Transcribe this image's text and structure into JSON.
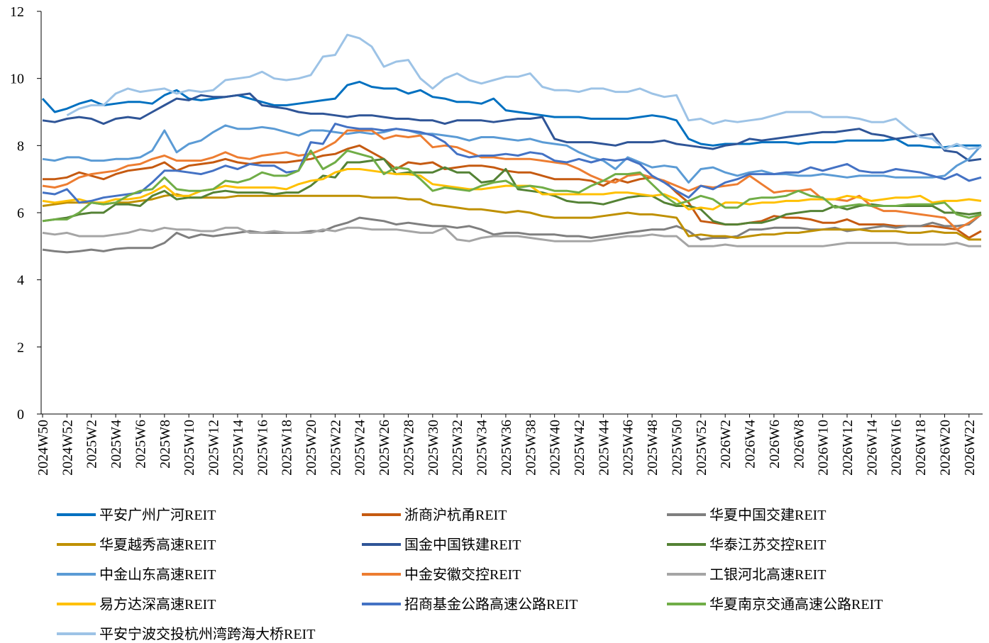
{
  "chart_data": {
    "type": "line",
    "categories": [
      "2024W50",
      null,
      "2024W52",
      null,
      "2025W2",
      null,
      "2025W4",
      null,
      "2025W6",
      null,
      "2025W8",
      null,
      "2025W10",
      null,
      "2025W12",
      null,
      "2025W14",
      null,
      "2025W16",
      null,
      "2025W18",
      null,
      "2025W20",
      null,
      "2025W22",
      null,
      "2025W24",
      null,
      "2025W26",
      null,
      "2025W28",
      null,
      "2025W30",
      null,
      "2025W32",
      null,
      "2025W34",
      null,
      "2025W36",
      null,
      "2025W38",
      null,
      "2025W40",
      null,
      "2025W42",
      null,
      "2025W44",
      null,
      "2025W46",
      null,
      "2025W48",
      null,
      "2025W50",
      null,
      "2025W52",
      null,
      "2026W2",
      null,
      "2026W4",
      null,
      "2026W6",
      null,
      "2026W8",
      null,
      "2026W10",
      null,
      "2026W12",
      null,
      "2026W14",
      null,
      "2026W16",
      null,
      "2026W18",
      null,
      "2026W20",
      null,
      "2026W22",
      null
    ],
    "ylim": [
      0,
      12
    ],
    "yticks": [
      0,
      2,
      4,
      6,
      8,
      10,
      12
    ],
    "grid": false,
    "legend": "bottom",
    "series": [
      {
        "name": "平安广州广河REIT",
        "color": "#0070c0",
        "values": [
          9.4,
          9.0,
          9.1,
          9.25,
          9.35,
          9.2,
          9.25,
          9.3,
          9.3,
          9.25,
          9.5,
          9.65,
          9.4,
          9.35,
          9.4,
          9.45,
          9.5,
          9.4,
          9.3,
          9.2,
          9.2,
          9.25,
          9.3,
          9.35,
          9.4,
          9.8,
          9.9,
          9.75,
          9.7,
          9.7,
          9.55,
          9.65,
          9.45,
          9.4,
          9.3,
          9.3,
          9.25,
          9.4,
          9.05,
          9.0,
          8.95,
          8.9,
          8.85,
          8.85,
          8.85,
          8.8,
          8.8,
          8.8,
          8.8,
          8.85,
          8.9,
          8.85,
          8.75,
          8.2,
          8.05,
          8.0,
          8.05,
          8.05,
          8.05,
          8.1,
          8.1,
          8.1,
          8.05,
          8.1,
          8.1,
          8.1,
          8.15,
          8.15,
          8.15,
          8.15,
          8.2,
          8.0,
          8.0,
          7.95,
          7.95,
          8.0,
          8.0,
          8.0
        ]
      },
      {
        "name": "浙商沪杭甬REIT",
        "color": "#c55a11",
        "values": [
          7.0,
          7.0,
          7.05,
          7.2,
          7.1,
          7.0,
          7.15,
          7.25,
          7.3,
          7.35,
          7.5,
          7.25,
          7.4,
          7.45,
          7.5,
          7.6,
          7.5,
          7.45,
          7.5,
          7.5,
          7.5,
          7.55,
          7.6,
          7.7,
          7.75,
          7.9,
          8.0,
          7.8,
          7.6,
          7.3,
          7.5,
          7.45,
          7.5,
          7.3,
          7.35,
          7.4,
          7.4,
          7.35,
          7.25,
          7.2,
          7.2,
          7.1,
          7.0,
          7.0,
          7.0,
          6.95,
          6.8,
          7.0,
          6.9,
          7.0,
          7.05,
          6.95,
          6.6,
          6.3,
          5.75,
          5.7,
          5.65,
          5.65,
          5.7,
          5.75,
          5.9,
          5.85,
          5.85,
          5.8,
          5.7,
          5.7,
          5.8,
          5.65,
          5.65,
          5.65,
          5.6,
          5.6,
          5.6,
          5.6,
          5.55,
          5.5,
          5.25,
          5.45
        ]
      },
      {
        "name": "华夏中国交建REIT",
        "color": "#7f7f7f",
        "values": [
          4.9,
          4.85,
          4.82,
          4.85,
          4.9,
          4.85,
          4.92,
          4.95,
          4.95,
          4.95,
          5.1,
          5.4,
          5.25,
          5.35,
          5.3,
          5.35,
          5.4,
          5.45,
          5.4,
          5.4,
          5.4,
          5.4,
          5.45,
          5.45,
          5.6,
          5.7,
          5.85,
          5.8,
          5.75,
          5.65,
          5.7,
          5.65,
          5.6,
          5.6,
          5.55,
          5.6,
          5.5,
          5.35,
          5.4,
          5.4,
          5.35,
          5.35,
          5.35,
          5.3,
          5.3,
          5.25,
          5.3,
          5.35,
          5.4,
          5.45,
          5.5,
          5.5,
          5.6,
          5.45,
          5.2,
          5.25,
          5.25,
          5.3,
          5.5,
          5.5,
          5.55,
          5.55,
          5.55,
          5.5,
          5.5,
          5.55,
          5.45,
          5.5,
          5.55,
          5.6,
          5.55,
          5.6,
          5.6,
          5.7,
          5.6,
          5.6,
          5.65,
          5.95
        ]
      },
      {
        "name": "华夏越秀高速REIT",
        "color": "#bf9000",
        "values": [
          6.2,
          6.25,
          6.3,
          6.3,
          6.3,
          6.25,
          6.3,
          6.3,
          6.35,
          6.4,
          6.5,
          6.55,
          6.45,
          6.45,
          6.45,
          6.45,
          6.5,
          6.5,
          6.5,
          6.5,
          6.5,
          6.5,
          6.5,
          6.5,
          6.5,
          6.5,
          6.5,
          6.45,
          6.45,
          6.45,
          6.4,
          6.4,
          6.25,
          6.2,
          6.15,
          6.1,
          6.1,
          6.05,
          6.0,
          6.05,
          6.0,
          5.9,
          5.85,
          5.85,
          5.85,
          5.85,
          5.9,
          5.95,
          6.0,
          5.95,
          5.95,
          5.9,
          5.85,
          5.3,
          5.35,
          5.3,
          5.3,
          5.25,
          5.3,
          5.35,
          5.35,
          5.4,
          5.4,
          5.45,
          5.5,
          5.5,
          5.5,
          5.5,
          5.45,
          5.45,
          5.45,
          5.4,
          5.4,
          5.45,
          5.4,
          5.4,
          5.2,
          5.2
        ]
      },
      {
        "name": "国金中国铁建REIT",
        "color": "#2f5597",
        "values": [
          8.75,
          8.7,
          8.8,
          8.85,
          8.8,
          8.65,
          8.8,
          8.85,
          8.8,
          9.0,
          9.2,
          9.4,
          9.35,
          9.5,
          9.45,
          9.45,
          9.5,
          9.55,
          9.2,
          9.15,
          9.1,
          9.0,
          8.95,
          8.95,
          8.9,
          8.85,
          8.9,
          8.9,
          8.85,
          8.8,
          8.8,
          8.75,
          8.75,
          8.65,
          8.75,
          8.75,
          8.75,
          8.7,
          8.75,
          8.8,
          8.8,
          8.85,
          8.2,
          8.1,
          8.1,
          8.1,
          8.05,
          8.0,
          8.1,
          8.1,
          8.1,
          8.15,
          8.05,
          8.0,
          7.95,
          7.9,
          8.0,
          8.05,
          8.2,
          8.15,
          8.2,
          8.25,
          8.3,
          8.35,
          8.4,
          8.4,
          8.45,
          8.5,
          8.35,
          8.3,
          8.2,
          8.25,
          8.3,
          8.35,
          7.85,
          7.8,
          7.55,
          7.6
        ]
      },
      {
        "name": "华泰江苏交控REIT",
        "color": "#548235",
        "values": [
          5.75,
          5.8,
          5.85,
          5.95,
          6.0,
          6.0,
          6.25,
          6.25,
          6.2,
          6.5,
          6.65,
          6.4,
          6.45,
          6.45,
          6.6,
          6.65,
          6.6,
          6.6,
          6.6,
          6.55,
          6.6,
          6.6,
          6.8,
          7.1,
          7.05,
          7.5,
          7.5,
          7.55,
          7.6,
          7.15,
          7.2,
          7.2,
          7.2,
          7.35,
          7.2,
          7.2,
          6.9,
          6.95,
          7.3,
          6.7,
          6.65,
          6.6,
          6.5,
          6.35,
          6.3,
          6.3,
          6.25,
          6.35,
          6.45,
          6.5,
          6.5,
          6.3,
          6.2,
          6.2,
          6.1,
          5.75,
          5.65,
          5.65,
          5.7,
          5.7,
          5.8,
          5.95,
          6.0,
          6.05,
          6.05,
          6.2,
          6.1,
          6.2,
          6.25,
          6.2,
          6.2,
          6.2,
          6.2,
          6.2,
          6.0,
          6.0,
          5.95,
          6.0
        ]
      },
      {
        "name": "中金山东高速REIT",
        "color": "#5b9bd5",
        "values": [
          7.6,
          7.55,
          7.65,
          7.65,
          7.55,
          7.55,
          7.6,
          7.6,
          7.65,
          7.85,
          8.45,
          7.8,
          8.05,
          8.15,
          8.4,
          8.6,
          8.5,
          8.5,
          8.55,
          8.5,
          8.4,
          8.3,
          8.45,
          8.45,
          8.4,
          8.35,
          8.4,
          8.35,
          8.4,
          8.5,
          8.45,
          8.35,
          8.35,
          8.3,
          8.25,
          8.15,
          8.25,
          8.25,
          8.2,
          8.15,
          8.2,
          8.1,
          8.05,
          8.0,
          7.8,
          7.65,
          7.55,
          7.3,
          7.65,
          7.5,
          7.35,
          7.4,
          7.35,
          6.9,
          7.3,
          7.35,
          7.2,
          7.1,
          7.2,
          7.25,
          7.15,
          7.15,
          7.1,
          7.1,
          7.15,
          7.1,
          7.05,
          7.1,
          7.1,
          7.1,
          7.05,
          7.05,
          7.05,
          7.05,
          7.1,
          7.4,
          7.6,
          8.0
        ]
      },
      {
        "name": "中金安徽交控REIT",
        "color": "#ed7d31",
        "values": [
          6.8,
          6.75,
          6.85,
          7.05,
          7.15,
          7.2,
          7.25,
          7.4,
          7.45,
          7.6,
          7.7,
          7.55,
          7.55,
          7.55,
          7.65,
          7.8,
          7.65,
          7.6,
          7.7,
          7.75,
          7.8,
          7.7,
          7.75,
          7.9,
          8.1,
          8.45,
          8.45,
          8.45,
          8.2,
          8.3,
          8.25,
          8.3,
          7.95,
          8.0,
          7.95,
          7.8,
          7.65,
          7.65,
          7.6,
          7.6,
          7.6,
          7.55,
          7.5,
          7.45,
          7.3,
          7.1,
          6.95,
          6.9,
          7.1,
          7.15,
          7.05,
          6.95,
          6.8,
          6.65,
          6.8,
          6.75,
          6.8,
          6.85,
          7.1,
          6.85,
          6.6,
          6.65,
          6.65,
          6.7,
          6.4,
          6.4,
          6.35,
          6.5,
          6.2,
          6.05,
          6.05,
          6.0,
          5.95,
          5.9,
          5.85,
          5.5,
          5.7,
          5.95
        ]
      },
      {
        "name": "工银河北高速REIT",
        "color": "#a5a5a5",
        "values": [
          5.4,
          5.35,
          5.4,
          5.3,
          5.3,
          5.3,
          5.35,
          5.4,
          5.5,
          5.45,
          5.55,
          5.5,
          5.5,
          5.45,
          5.45,
          5.55,
          5.55,
          5.4,
          5.4,
          5.45,
          5.4,
          5.4,
          5.4,
          5.5,
          5.45,
          5.55,
          5.55,
          5.5,
          5.5,
          5.5,
          5.45,
          5.4,
          5.4,
          5.55,
          5.2,
          5.15,
          5.25,
          5.3,
          5.3,
          5.3,
          5.25,
          5.2,
          5.15,
          5.15,
          5.15,
          5.15,
          5.2,
          5.25,
          5.3,
          5.3,
          5.35,
          5.3,
          5.3,
          5.0,
          5.0,
          5.0,
          5.05,
          5.0,
          5.0,
          5.0,
          5.0,
          5.0,
          5.0,
          5.0,
          5.0,
          5.05,
          5.1,
          5.1,
          5.1,
          5.1,
          5.1,
          5.05,
          5.05,
          5.05,
          5.05,
          5.1,
          5.0,
          5.0
        ]
      },
      {
        "name": "易方达深高速REIT",
        "color": "#ffc000",
        "values": [
          6.35,
          6.3,
          6.35,
          6.4,
          6.3,
          6.3,
          6.4,
          6.4,
          6.45,
          6.6,
          6.8,
          6.5,
          6.5,
          6.65,
          6.7,
          6.8,
          6.75,
          6.75,
          6.75,
          6.75,
          6.7,
          6.85,
          6.95,
          7.0,
          7.2,
          7.3,
          7.3,
          7.25,
          7.2,
          7.15,
          7.15,
          7.1,
          6.85,
          6.8,
          6.75,
          6.7,
          6.7,
          6.75,
          6.8,
          6.8,
          6.8,
          6.55,
          6.55,
          6.55,
          6.55,
          6.55,
          6.55,
          6.6,
          6.6,
          6.55,
          6.5,
          6.55,
          6.4,
          6.1,
          6.15,
          6.1,
          6.3,
          6.3,
          6.25,
          6.3,
          6.3,
          6.35,
          6.35,
          6.4,
          6.4,
          6.4,
          6.5,
          6.45,
          6.35,
          6.4,
          6.45,
          6.45,
          6.5,
          6.3,
          6.35,
          6.35,
          6.4,
          6.35
        ]
      },
      {
        "name": "招商基金公路高速公路REIT",
        "color": "#4472c4",
        "values": [
          6.6,
          6.55,
          6.7,
          6.3,
          6.35,
          6.45,
          6.5,
          6.55,
          6.6,
          6.9,
          7.25,
          7.25,
          7.2,
          7.15,
          7.25,
          7.4,
          7.3,
          7.45,
          7.4,
          7.4,
          7.2,
          7.25,
          8.1,
          8.05,
          8.65,
          8.55,
          8.5,
          8.5,
          8.45,
          8.5,
          8.45,
          8.4,
          8.3,
          8.1,
          7.75,
          7.65,
          7.7,
          7.7,
          7.75,
          7.7,
          7.8,
          7.75,
          7.55,
          7.5,
          7.6,
          7.5,
          7.6,
          7.55,
          7.6,
          7.45,
          7.1,
          6.9,
          6.65,
          6.45,
          6.8,
          6.7,
          6.9,
          7.0,
          7.15,
          7.15,
          7.15,
          7.2,
          7.2,
          7.35,
          7.25,
          7.35,
          7.45,
          7.25,
          7.2,
          7.2,
          7.3,
          7.25,
          7.2,
          7.1,
          7.0,
          7.15,
          6.95,
          7.05
        ]
      },
      {
        "name": "华夏南京交通高速公路REIT",
        "color": "#70ad47",
        "values": [
          5.75,
          5.8,
          5.8,
          6.0,
          6.3,
          6.25,
          6.3,
          6.5,
          6.65,
          6.7,
          7.05,
          6.7,
          6.65,
          6.65,
          6.7,
          6.95,
          6.9,
          7.0,
          7.2,
          7.1,
          7.1,
          7.25,
          7.85,
          7.3,
          7.5,
          7.85,
          7.75,
          7.65,
          7.15,
          7.35,
          7.3,
          7.0,
          6.65,
          6.75,
          6.7,
          6.65,
          6.8,
          6.9,
          6.95,
          6.75,
          6.8,
          6.75,
          6.65,
          6.65,
          6.6,
          6.8,
          6.95,
          7.15,
          7.15,
          7.2,
          6.85,
          6.5,
          6.25,
          6.35,
          6.5,
          6.4,
          6.15,
          6.15,
          6.4,
          6.45,
          6.45,
          6.5,
          6.65,
          6.5,
          6.45,
          6.15,
          6.2,
          6.25,
          6.2,
          6.2,
          6.2,
          6.25,
          6.25,
          6.25,
          6.3,
          5.95,
          5.85,
          5.95
        ]
      },
      {
        "name": "平安宁波交投杭州湾跨海大桥REIT",
        "color": "#9dc3e6",
        "values": [
          null,
          null,
          8.9,
          9.1,
          9.2,
          9.2,
          9.55,
          9.7,
          9.6,
          9.65,
          9.7,
          9.55,
          9.65,
          9.6,
          9.65,
          9.95,
          10.0,
          10.05,
          10.2,
          10.0,
          9.95,
          10.0,
          10.1,
          10.65,
          10.7,
          11.3,
          11.2,
          10.95,
          10.35,
          10.5,
          10.55,
          10.0,
          9.7,
          10.0,
          10.15,
          9.95,
          9.85,
          9.95,
          10.05,
          10.05,
          10.15,
          9.75,
          9.65,
          9.65,
          9.6,
          9.7,
          9.7,
          9.6,
          9.6,
          9.7,
          9.55,
          9.45,
          9.5,
          8.75,
          8.8,
          8.65,
          8.75,
          8.7,
          8.75,
          8.8,
          8.9,
          9.0,
          9.0,
          9.0,
          8.85,
          8.85,
          8.85,
          8.8,
          8.7,
          8.7,
          8.8,
          8.5,
          8.25,
          8.2,
          7.9,
          8.05,
          7.9,
          7.95
        ]
      }
    ]
  }
}
